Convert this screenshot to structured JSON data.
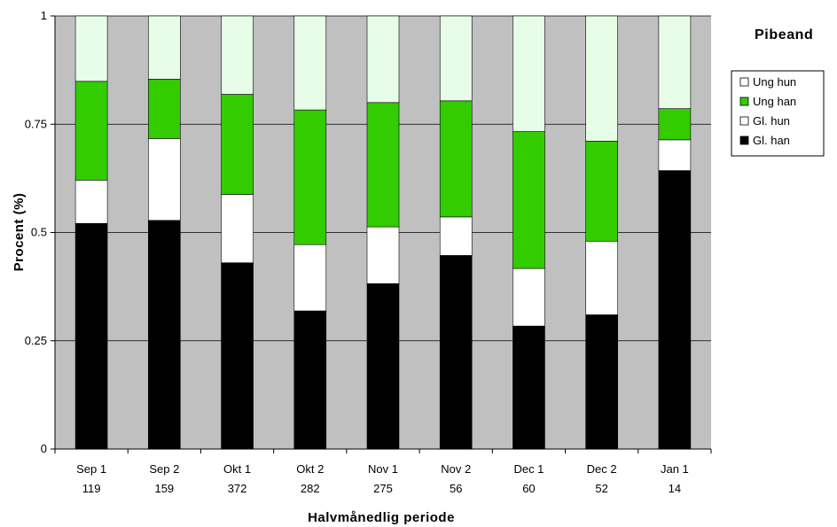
{
  "chart_data": {
    "type": "bar",
    "stacked": true,
    "title": "Pibeand",
    "xlabel": "Halvmånedlig periode",
    "ylabel": "Procent (%)",
    "ylim": [
      0,
      1
    ],
    "yticks": [
      "0",
      "0.25",
      "0.5",
      "0.75",
      "1"
    ],
    "grid": true,
    "legend_position": "right",
    "categories": [
      "Sep 1",
      "Sep 2",
      "Okt 1",
      "Okt 2",
      "Nov 1",
      "Nov 2",
      "Dec 1",
      "Dec 2",
      "Jan 1"
    ],
    "counts": [
      "119",
      "159",
      "372",
      "282",
      "275",
      "56",
      "60",
      "52",
      "14"
    ],
    "series": [
      {
        "name": "Gl. han",
        "color": "#000000",
        "values": [
          0.521,
          0.528,
          0.43,
          0.319,
          0.382,
          0.447,
          0.284,
          0.31,
          0.643
        ]
      },
      {
        "name": "Gl. hun",
        "color": "#ffffff",
        "values": [
          0.1,
          0.189,
          0.158,
          0.153,
          0.131,
          0.089,
          0.133,
          0.17,
          0.071
        ]
      },
      {
        "name": "Ung han",
        "color": "#33cc00",
        "values": [
          0.228,
          0.137,
          0.231,
          0.311,
          0.287,
          0.268,
          0.316,
          0.231,
          0.072
        ]
      },
      {
        "name": "Ung hun",
        "color": "#e8fde8",
        "values": [
          0.151,
          0.146,
          0.181,
          0.217,
          0.2,
          0.196,
          0.267,
          0.289,
          0.214
        ]
      }
    ],
    "plot_background": "#c0c0c0"
  }
}
